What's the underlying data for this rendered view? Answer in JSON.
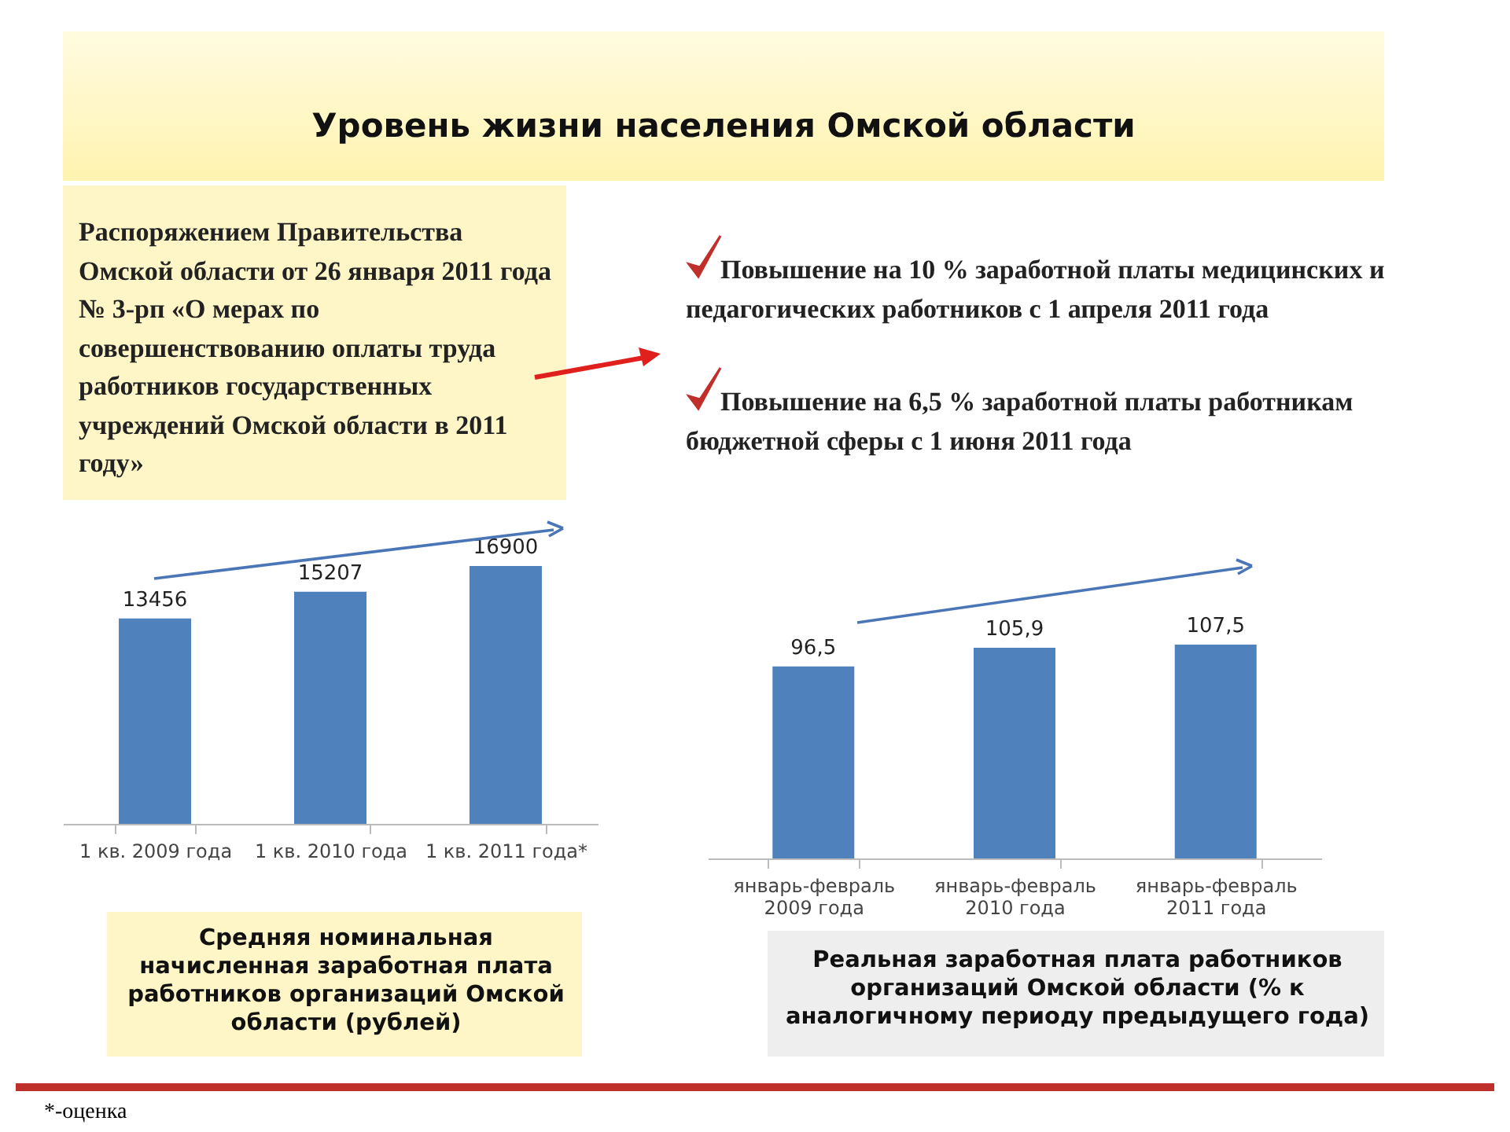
{
  "chart_data": [
    {
      "type": "other",
      "title": "Уровень жизни населения Омской области",
      "annotations": [
        "Распоряжением Правительства Омской области от 26 января 2011 года № 3-рп «О мерах по совершенствованию оплаты труда работников государственных учреждений Омской области в 2011 году»",
        "Повышение на 10 % заработной платы медицинских и педагогических работников с 1 апреля 2011 года",
        "Повышение на 6,5 % заработной платы работникам бюджетной сферы с 1 июня 2011 года"
      ]
    },
    {
      "type": "bar",
      "title": "Средняя номинальная начисленная заработная плата работников организаций Омской области (рублей)",
      "categories": [
        "1 кв. 2009 года",
        "1 кв. 2010 года",
        "1 кв. 2011 года*"
      ],
      "values": [
        13456,
        15207,
        16900
      ],
      "color": "#4f81bd",
      "data_labels": true,
      "annotations": [
        "*-оценка"
      ]
    },
    {
      "type": "bar",
      "title": "Реальная заработная плата работников организаций Омской области (% к аналогичному периоду предыдущего года)",
      "categories": [
        "январь-февраль 2009 года",
        "январь-февраль 2010 года",
        "январь-февраль 2011 года"
      ],
      "values": [
        96.5,
        105.9,
        107.5
      ],
      "value_labels": [
        "96,5",
        "105,9",
        "107,5"
      ],
      "color": "#4f81bd"
    }
  ]
}
